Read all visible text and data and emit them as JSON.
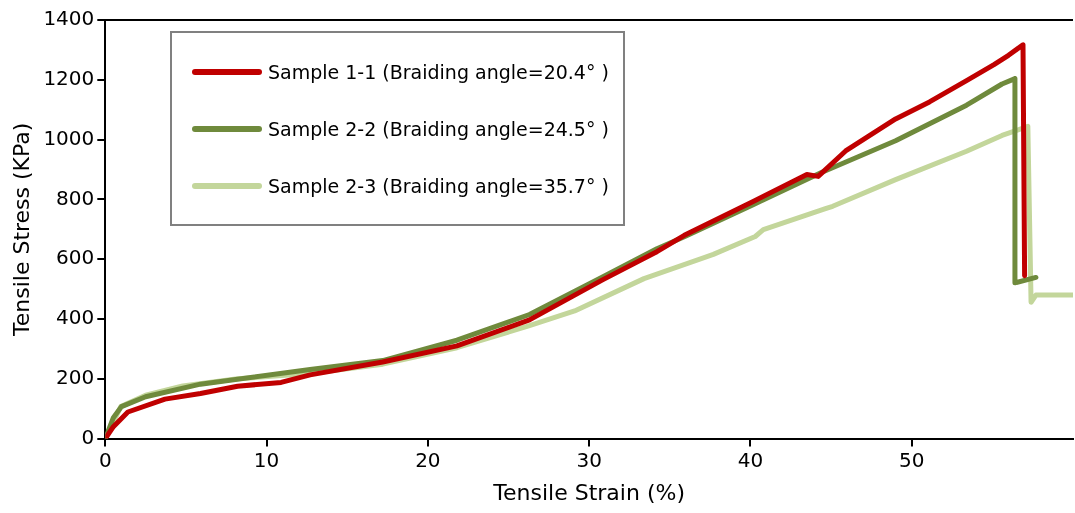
{
  "chart_data": {
    "type": "line",
    "xlabel": "Tensile Strain (%)",
    "ylabel": "Tensile Stress (KPa)",
    "xlim": [
      0,
      60
    ],
    "xticks": [
      0,
      10,
      20,
      30,
      40,
      50
    ],
    "ylim": [
      0,
      1400
    ],
    "yticks": [
      0,
      200,
      400,
      600,
      800,
      1000,
      1200,
      1400
    ],
    "grid": false,
    "legend": "top left",
    "marker": "none",
    "line_style": "solid",
    "series": [
      {
        "name": "Sample 1-1 (Braiding angle=20.4° )",
        "color": "#c00000",
        "x": [
          0,
          0.5,
          1.4,
          3.7,
          5.9,
          8.2,
          10.9,
          12.7,
          17.2,
          21.8,
          26.3,
          30.8,
          34.2,
          35.9,
          40.2,
          43.5,
          44.2,
          45.9,
          49.0,
          51.1,
          53.4,
          55.1,
          56.0,
          56.9,
          57.0
        ],
        "values": [
          0,
          40,
          89,
          132,
          151,
          175,
          188,
          213,
          256,
          310,
          397,
          530,
          625,
          680,
          794,
          883,
          877,
          962,
          1069,
          1126,
          1197,
          1251,
          1282,
          1317,
          545
        ]
      },
      {
        "name": "Sample 2-2 (Braiding angle=24.5° )",
        "color": "#6f8a3c",
        "x": [
          0,
          0.5,
          1.0,
          2.5,
          5.9,
          12.7,
          17.2,
          21.8,
          26.3,
          30.8,
          34.2,
          35.9,
          40.2,
          44.4,
          49.0,
          53.4,
          55.6,
          56.4,
          56.4,
          57.7
        ],
        "values": [
          0,
          70,
          107,
          140,
          182,
          231,
          261,
          329,
          415,
          540,
          635,
          675,
          783,
          890,
          996,
          1115,
          1186,
          1204,
          521,
          539
        ]
      },
      {
        "name": "Sample 2-3 (Braiding angle=35.7° )",
        "color": "#c3d69b",
        "x": [
          0,
          0.96,
          2.5,
          4.8,
          8.2,
          12.7,
          17.2,
          21.8,
          26.3,
          29.1,
          33.4,
          37.7,
          40.3,
          40.8,
          44.7,
          45.1,
          49.0,
          53.4,
          55.6,
          57.2,
          57.4,
          57.7,
          60
        ],
        "values": [
          0,
          107,
          145,
          176,
          200,
          218,
          249,
          304,
          378,
          427,
          535,
          616,
          676,
          699,
          770,
          777,
          866,
          961,
          1014,
          1044,
          456,
          480,
          480
        ]
      }
    ]
  }
}
